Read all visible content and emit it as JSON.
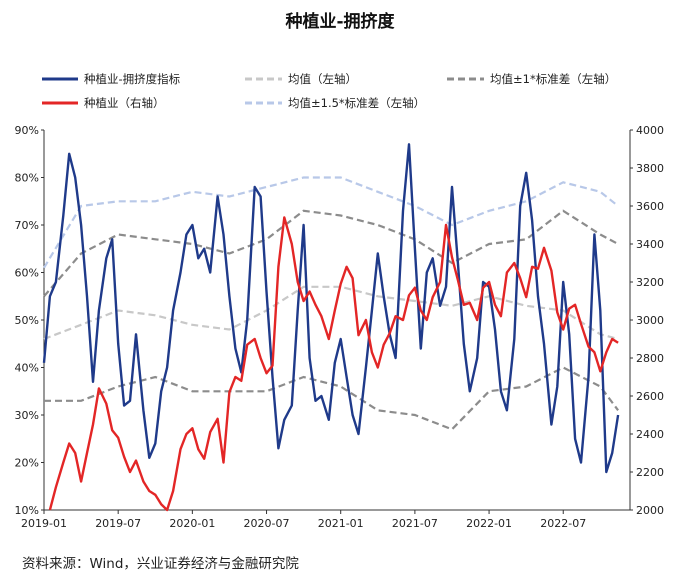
{
  "chart_data": {
    "type": "line",
    "title": "种植业-拥挤度",
    "legend": [
      {
        "label": "种植业-拥挤度指标",
        "color": "#1F3A8A",
        "dash": "solid"
      },
      {
        "label": "均值（左轴）",
        "color": "#C8C8C8",
        "dash": "dash"
      },
      {
        "label": "均值±1*标准差（左轴）",
        "color": "#8C8C8C",
        "dash": "dash"
      },
      {
        "label": "种植业（右轴）",
        "color": "#E32626",
        "dash": "solid"
      },
      {
        "label": "均值±1.5*标准差（左轴）",
        "color": "#B8C8E8",
        "dash": "dash"
      }
    ],
    "x_ticks": [
      "2019-01",
      "2019-07",
      "2020-01",
      "2020-07",
      "2021-01",
      "2021-07",
      "2022-01",
      "2022-07"
    ],
    "x_range": [
      "2019-01",
      "2022-11"
    ],
    "y_left_ticks": [
      "10%",
      "20%",
      "30%",
      "40%",
      "50%",
      "60%",
      "70%",
      "80%",
      "90%"
    ],
    "y_left_range": [
      10,
      90
    ],
    "y_right_ticks": [
      "2000",
      "2200",
      "2400",
      "2600",
      "2800",
      "3000",
      "3200",
      "3400",
      "3600",
      "3800",
      "4000"
    ],
    "y_right_range": [
      2000,
      4000
    ],
    "series": [
      {
        "name": "种植业-拥挤度指标",
        "axis": "left",
        "color": "#1F3A8A",
        "x": [
          2019.0,
          2019.04,
          2019.08,
          2019.13,
          2019.17,
          2019.21,
          2019.25,
          2019.29,
          2019.33,
          2019.37,
          2019.42,
          2019.46,
          2019.5,
          2019.54,
          2019.58,
          2019.62,
          2019.67,
          2019.71,
          2019.75,
          2019.79,
          2019.83,
          2019.87,
          2019.92,
          2019.96,
          2020.0,
          2020.04,
          2020.08,
          2020.12,
          2020.17,
          2020.21,
          2020.25,
          2020.29,
          2020.33,
          2020.37,
          2020.42,
          2020.46,
          2020.5,
          2020.54,
          2020.58,
          2020.62,
          2020.67,
          2020.71,
          2020.75,
          2020.79,
          2020.83,
          2020.87,
          2020.92,
          2020.96,
          2021.0,
          2021.04,
          2021.08,
          2021.12,
          2021.17,
          2021.21,
          2021.25,
          2021.29,
          2021.33,
          2021.37,
          2021.42,
          2021.46,
          2021.5,
          2021.54,
          2021.58,
          2021.62,
          2021.67,
          2021.71,
          2021.75,
          2021.79,
          2021.83,
          2021.87,
          2021.92,
          2021.96,
          2022.0,
          2022.04,
          2022.08,
          2022.12,
          2022.17,
          2022.21,
          2022.25,
          2022.29,
          2022.33,
          2022.37,
          2022.42,
          2022.46,
          2022.5,
          2022.54,
          2022.58,
          2022.62,
          2022.67,
          2022.71,
          2022.75,
          2022.79,
          2022.83,
          2022.87
        ],
        "values": [
          41,
          55,
          58,
          72,
          85,
          80,
          70,
          55,
          37,
          52,
          63,
          67,
          45,
          32,
          33,
          47,
          31,
          21,
          24,
          35,
          40,
          52,
          60,
          68,
          70,
          63,
          65,
          60,
          76,
          68,
          55,
          44,
          39,
          50,
          78,
          76,
          56,
          38,
          23,
          29,
          32,
          52,
          70,
          42,
          33,
          34,
          29,
          41,
          46,
          38,
          30,
          26,
          40,
          52,
          64,
          55,
          47,
          42,
          73,
          87,
          65,
          44,
          60,
          63,
          53,
          57,
          78,
          62,
          45,
          35,
          42,
          58,
          57,
          48,
          35,
          31,
          46,
          74,
          81,
          71,
          55,
          45,
          28,
          36,
          58,
          47,
          25,
          20,
          38,
          68,
          52,
          18,
          22,
          30
        ]
      },
      {
        "name": "种植业（右轴）",
        "axis": "right",
        "color": "#E32626",
        "x": [
          2019.04,
          2019.08,
          2019.13,
          2019.17,
          2019.21,
          2019.25,
          2019.29,
          2019.33,
          2019.37,
          2019.42,
          2019.46,
          2019.5,
          2019.54,
          2019.58,
          2019.62,
          2019.67,
          2019.71,
          2019.75,
          2019.79,
          2019.83,
          2019.87,
          2019.92,
          2019.96,
          2020.0,
          2020.04,
          2020.08,
          2020.12,
          2020.17,
          2020.21,
          2020.25,
          2020.29,
          2020.33,
          2020.37,
          2020.42,
          2020.46,
          2020.5,
          2020.54,
          2020.58,
          2020.62,
          2020.67,
          2020.71,
          2020.75,
          2020.79,
          2020.83,
          2020.87,
          2020.92,
          2020.96,
          2021.0,
          2021.04,
          2021.08,
          2021.12,
          2021.17,
          2021.21,
          2021.25,
          2021.29,
          2021.33,
          2021.37,
          2021.42,
          2021.46,
          2021.5,
          2021.54,
          2021.58,
          2021.62,
          2021.67,
          2021.71,
          2021.75,
          2021.79,
          2021.83,
          2021.87,
          2021.92,
          2021.96,
          2022.0,
          2022.04,
          2022.08,
          2022.12,
          2022.17,
          2022.21,
          2022.25,
          2022.29,
          2022.33,
          2022.37,
          2022.42,
          2022.46,
          2022.5,
          2022.54,
          2022.58,
          2022.62,
          2022.67,
          2022.71,
          2022.75,
          2022.79,
          2022.83,
          2022.87
        ],
        "values": [
          2000,
          2120,
          2250,
          2350,
          2300,
          2150,
          2300,
          2450,
          2640,
          2560,
          2420,
          2380,
          2280,
          2200,
          2260,
          2150,
          2100,
          2080,
          2030,
          2000,
          2100,
          2320,
          2400,
          2430,
          2320,
          2270,
          2410,
          2480,
          2250,
          2620,
          2700,
          2680,
          2870,
          2900,
          2800,
          2720,
          2760,
          3280,
          3540,
          3400,
          3200,
          3100,
          3150,
          3080,
          3020,
          2900,
          3050,
          3190,
          3280,
          3220,
          2920,
          3000,
          2830,
          2750,
          2870,
          2930,
          3020,
          3000,
          3130,
          3170,
          3050,
          3000,
          3120,
          3200,
          3500,
          3330,
          3210,
          3080,
          3090,
          3000,
          3170,
          3200,
          3080,
          3020,
          3250,
          3300,
          3220,
          3120,
          3280,
          3270,
          3380,
          3260,
          3040,
          2950,
          3060,
          3080,
          2980,
          2860,
          2830,
          2730,
          2830,
          2900,
          2880
        ]
      }
    ],
    "bands": [
      {
        "name": "均值（左轴）",
        "x": [
          2019.0,
          2019.25,
          2019.5,
          2019.75,
          2020.0,
          2020.25,
          2020.5,
          2020.75,
          2021.0,
          2021.25,
          2021.5,
          2021.75,
          2022.0,
          2022.25,
          2022.5,
          2022.75,
          2022.87
        ],
        "values": [
          46,
          49,
          52,
          51,
          49,
          48,
          52,
          57,
          57,
          55,
          54,
          53,
          55,
          53,
          52,
          47,
          46
        ]
      },
      {
        "name": "均值+1*标准差（左轴）",
        "x": [
          2019.0,
          2019.25,
          2019.5,
          2019.75,
          2020.0,
          2020.25,
          2020.5,
          2020.75,
          2021.0,
          2021.25,
          2021.5,
          2021.75,
          2022.0,
          2022.25,
          2022.5,
          2022.75,
          2022.87
        ],
        "values": [
          55,
          64,
          68,
          67,
          66,
          64,
          67,
          73,
          72,
          70,
          67,
          62,
          66,
          67,
          73,
          68,
          66
        ]
      },
      {
        "name": "均值-1*标准差（左轴）",
        "x": [
          2019.0,
          2019.25,
          2019.5,
          2019.75,
          2020.0,
          2020.25,
          2020.5,
          2020.75,
          2021.0,
          2021.25,
          2021.5,
          2021.75,
          2022.0,
          2022.25,
          2022.5,
          2022.75,
          2022.87
        ],
        "values": [
          33,
          33,
          36,
          38,
          35,
          35,
          35,
          38,
          36,
          31,
          30,
          27,
          35,
          36,
          40,
          36,
          31
        ]
      },
      {
        "name": "均值+1.5*标准差（左轴）",
        "x": [
          2019.0,
          2019.25,
          2019.5,
          2019.75,
          2020.0,
          2020.25,
          2020.5,
          2020.75,
          2021.0,
          2021.25,
          2021.5,
          2021.75,
          2022.0,
          2022.25,
          2022.5,
          2022.75,
          2022.87
        ],
        "values": [
          61,
          74,
          75,
          75,
          77,
          76,
          78,
          80,
          80,
          77,
          74,
          70,
          73,
          75,
          79,
          77,
          74
        ]
      }
    ]
  },
  "source_text": "资料来源：Wind，兴业证券经济与金融研究院"
}
